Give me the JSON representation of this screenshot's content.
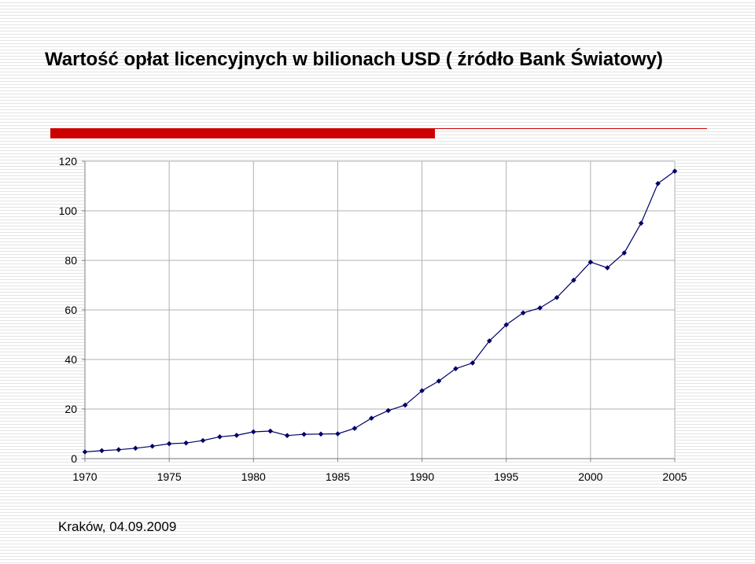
{
  "header": {
    "title": "Wartość opłat licencyjnych w bilionach USD ( źródło Bank Światowy)"
  },
  "footer": {
    "text": "Kraków, 04.09.2009"
  },
  "colors": {
    "accent": "#cc0000",
    "series": "#000066",
    "grid": "#b0b0b0"
  },
  "chart_data": {
    "type": "line",
    "title": "Wartość opłat licencyjnych w bilionach USD ( źródło Bank Światowy)",
    "xlabel": "",
    "ylabel": "",
    "xlim": [
      1970,
      2005
    ],
    "ylim": [
      0,
      120
    ],
    "x_ticks": [
      1970,
      1975,
      1980,
      1985,
      1990,
      1995,
      2000,
      2005
    ],
    "y_ticks": [
      0,
      20,
      40,
      60,
      80,
      100,
      120
    ],
    "grid": true,
    "legend": "none",
    "marker": "diamond",
    "series": [
      {
        "x": [
          1970,
          1971,
          1972,
          1973,
          1974,
          1975,
          1976,
          1977,
          1978,
          1979,
          1980,
          1981,
          1982,
          1983,
          1984,
          1985,
          1986,
          1987,
          1988,
          1989,
          1990,
          1991,
          1992,
          1993,
          1994,
          1995,
          1996,
          1997,
          1998,
          1999,
          2000,
          2001,
          2002,
          2003,
          2004,
          2005
        ],
        "values": [
          2.7,
          3.2,
          3.6,
          4.2,
          5.0,
          6.0,
          6.3,
          7.3,
          8.8,
          9.4,
          10.8,
          11.1,
          9.3,
          9.8,
          9.9,
          10.0,
          12.2,
          16.3,
          19.4,
          21.6,
          27.4,
          31.3,
          36.3,
          38.6,
          47.5,
          54.0,
          58.8,
          60.8,
          65.0,
          72.0,
          79.3,
          77.0,
          83.0,
          95.0,
          111.0,
          116.0
        ]
      }
    ]
  }
}
